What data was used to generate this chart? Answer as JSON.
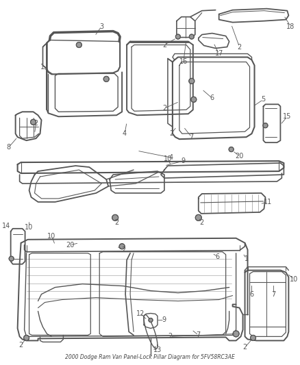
{
  "title": "2000 Dodge Ram Van Panel-Lock Pillar Diagram for 5FV58RC3AE",
  "background_color": "#ffffff",
  "figsize": [
    4.38,
    5.33
  ],
  "dpi": 100,
  "lc": "#555555",
  "tc": "#555555",
  "lw_main": 1.3,
  "lw_inner": 0.8,
  "lw_thin": 0.5,
  "fs_label": 7.0,
  "footer": "2000 Dodge Ram Van Panel-Lock Pillar Diagram for 5FV58RC3AE"
}
